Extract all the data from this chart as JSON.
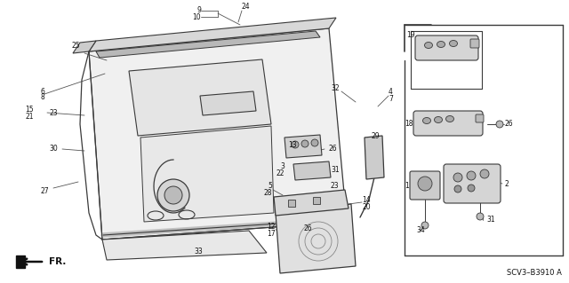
{
  "bg_color": "#ffffff",
  "diagram_code": "SCV3–B3910 A",
  "line_color": "#3a3a3a",
  "label_color": "#111111",
  "fs": 5.5,
  "fs_fr": 7.5,
  "fs_code": 6.0
}
